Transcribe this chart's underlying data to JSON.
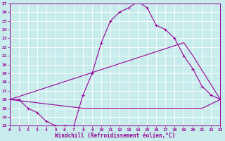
{
  "xlabel": "Windchill (Refroidissement éolien,°C)",
  "bg_color": "#c8ecec",
  "line_color": "#990099",
  "grid_color": "#ffffff",
  "ylim": [
    13,
    27
  ],
  "xlim": [
    0,
    23
  ],
  "yticks": [
    13,
    14,
    15,
    16,
    17,
    18,
    19,
    20,
    21,
    22,
    23,
    24,
    25,
    26,
    27
  ],
  "xticks": [
    0,
    1,
    2,
    3,
    4,
    5,
    6,
    7,
    8,
    9,
    10,
    11,
    12,
    13,
    14,
    15,
    16,
    17,
    18,
    19,
    20,
    21,
    22,
    23
  ],
  "line1_x": [
    0,
    1,
    2,
    3,
    4,
    5,
    6,
    7,
    8,
    9,
    10,
    11,
    12,
    13,
    14,
    15,
    16,
    17,
    18,
    19,
    20,
    21,
    22,
    23
  ],
  "line1_y": [
    16.0,
    16.0,
    15.0,
    14.5,
    13.5,
    13.0,
    13.0,
    13.0,
    16.5,
    19.0,
    22.5,
    25.0,
    26.0,
    26.5,
    27.2,
    26.5,
    24.5,
    24.0,
    23.0,
    21.0,
    19.5,
    17.5,
    16.5,
    16.0
  ],
  "line2_x": [
    0,
    19,
    20,
    23
  ],
  "line2_y": [
    16.0,
    22.5,
    21.0,
    16.0
  ],
  "line3_x": [
    0,
    8,
    9,
    10,
    11,
    12,
    13,
    14,
    15,
    16,
    17,
    18,
    19,
    20,
    21,
    22,
    23
  ],
  "line3_y": [
    16.0,
    15.0,
    15.0,
    15.0,
    15.0,
    15.0,
    15.0,
    15.0,
    15.0,
    15.0,
    15.0,
    15.0,
    15.0,
    15.0,
    15.0,
    15.5,
    16.0
  ]
}
